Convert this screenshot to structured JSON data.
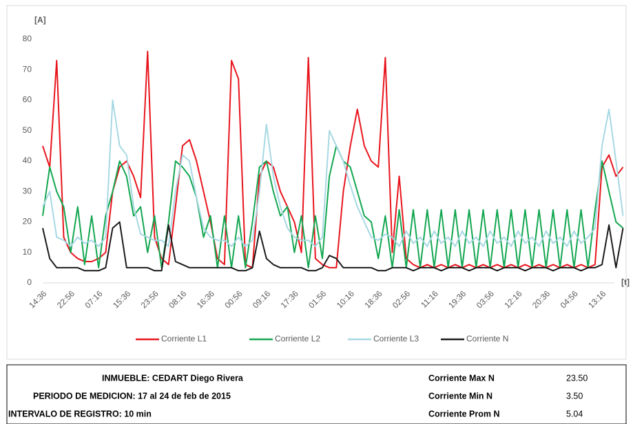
{
  "chart_data": {
    "type": "line",
    "y_label": "[A]",
    "x_label": "[t]",
    "categories": [
      "14:36",
      null,
      null,
      null,
      "22:56",
      null,
      null,
      null,
      "07:16",
      null,
      null,
      null,
      "15:36",
      null,
      null,
      null,
      "23:56",
      null,
      null,
      null,
      "08:16",
      null,
      null,
      null,
      "16:36",
      null,
      null,
      null,
      "00:56",
      null,
      null,
      null,
      "09:16",
      null,
      null,
      null,
      "17:36",
      null,
      null,
      null,
      "01:56",
      null,
      null,
      null,
      "10:16",
      null,
      null,
      null,
      "18:36",
      null,
      null,
      null,
      "02:56",
      null,
      null,
      null,
      "11:16",
      null,
      null,
      null,
      "19:36",
      null,
      null,
      null,
      "03:56",
      null,
      null,
      null,
      "12:16",
      null,
      null,
      null,
      "20:36",
      null,
      null,
      null,
      "04:56",
      null,
      null,
      null,
      "13:16",
      null,
      null,
      null
    ],
    "series": [
      {
        "name": "Corriente L1",
        "color": "#e8141c",
        "values": [
          45,
          38,
          73,
          15,
          10,
          8,
          7,
          7,
          8,
          10,
          30,
          38,
          40,
          35,
          28,
          76,
          15,
          8,
          6,
          25,
          45,
          47,
          40,
          30,
          20,
          8,
          6,
          73,
          67,
          6,
          5,
          35,
          40,
          38,
          30,
          25,
          20,
          10,
          74,
          8,
          6,
          5,
          5,
          30,
          45,
          57,
          45,
          40,
          38,
          74,
          10,
          35,
          8,
          6,
          5,
          6,
          5,
          6,
          5,
          6,
          5,
          6,
          5,
          6,
          5,
          6,
          5,
          6,
          5,
          6,
          5,
          6,
          5,
          6,
          5,
          6,
          5,
          6,
          5,
          6,
          38,
          42,
          35,
          38
        ]
      },
      {
        "name": "Corriente L2",
        "color": "#12a650",
        "values": [
          22,
          38,
          30,
          25,
          10,
          25,
          6,
          22,
          5,
          22,
          30,
          40,
          35,
          22,
          25,
          10,
          22,
          5,
          20,
          40,
          38,
          35,
          28,
          15,
          22,
          5,
          22,
          5,
          22,
          5,
          20,
          38,
          40,
          30,
          22,
          25,
          10,
          22,
          5,
          22,
          8,
          35,
          45,
          40,
          38,
          30,
          22,
          20,
          8,
          22,
          5,
          24,
          5,
          24,
          5,
          24,
          5,
          24,
          5,
          24,
          5,
          24,
          5,
          24,
          5,
          24,
          5,
          24,
          5,
          24,
          5,
          24,
          5,
          24,
          5,
          24,
          5,
          24,
          5,
          24,
          40,
          30,
          20,
          18
        ]
      },
      {
        "name": "Corriente L3",
        "color": "#a7d8e3",
        "values": [
          25,
          30,
          15,
          14,
          12,
          15,
          13,
          14,
          12,
          15,
          60,
          45,
          42,
          25,
          16,
          15,
          14,
          14,
          12,
          30,
          42,
          40,
          28,
          18,
          15,
          14,
          14,
          12,
          15,
          12,
          14,
          30,
          52,
          35,
          25,
          18,
          15,
          14,
          14,
          12,
          15,
          50,
          45,
          40,
          32,
          25,
          20,
          15,
          14,
          16,
          15,
          12,
          17,
          13,
          15,
          12,
          17,
          13,
          15,
          12,
          17,
          13,
          15,
          12,
          17,
          13,
          15,
          12,
          17,
          13,
          15,
          12,
          17,
          13,
          15,
          12,
          17,
          13,
          15,
          18,
          45,
          57,
          40,
          22
        ]
      },
      {
        "name": "Corriente N",
        "color": "#1a1a1a",
        "values": [
          18,
          8,
          5,
          5,
          5,
          5,
          4,
          4,
          4,
          5,
          18,
          20,
          5,
          5,
          5,
          5,
          4,
          4,
          19,
          7,
          6,
          5,
          5,
          5,
          5,
          5,
          5,
          5,
          4,
          4,
          5,
          17,
          8,
          6,
          5,
          5,
          5,
          5,
          4,
          4,
          5,
          9,
          8,
          5,
          5,
          5,
          5,
          5,
          4,
          4,
          5,
          5,
          5,
          4,
          5,
          5,
          5,
          4,
          5,
          5,
          5,
          4,
          5,
          5,
          5,
          4,
          5,
          5,
          5,
          4,
          5,
          5,
          5,
          4,
          5,
          5,
          5,
          4,
          5,
          5,
          6,
          19,
          5,
          18
        ]
      }
    ],
    "ylim": [
      0,
      80
    ],
    "yticks": [
      0,
      10,
      20,
      30,
      40,
      50,
      60,
      70,
      80
    ],
    "legend": "bottom"
  },
  "info_table": {
    "rows": [
      [
        "INMUEBLE: CEDART Diego Rivera",
        "Corriente Max N",
        "23.50"
      ],
      [
        "PERIODO DE MEDICION: 17 al 24 de feb de 2015",
        "Corriente Min N",
        "3.50"
      ],
      [
        "INTERVALO DE REGISTRO: 10 min",
        "Corriente Prom N",
        "5.04"
      ]
    ]
  }
}
